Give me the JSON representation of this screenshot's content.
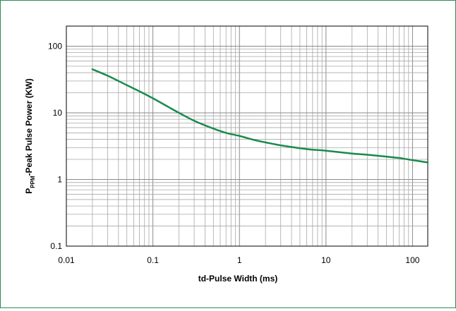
{
  "chart_data": {
    "type": "line",
    "title": "",
    "xlabel": "td-Pulse Width (ms)",
    "ylabel": {
      "prefix": "P",
      "subscript": "PPM",
      "suffix": "-Peak Pulse Power (KW)"
    },
    "x_scale": "log",
    "y_scale": "log",
    "xlim": [
      0.01,
      150
    ],
    "ylim": [
      0.1,
      200
    ],
    "x_ticks": [
      {
        "value": 0.01,
        "label": "0.01"
      },
      {
        "value": 0.1,
        "label": "0.1"
      },
      {
        "value": 1,
        "label": "1"
      },
      {
        "value": 10,
        "label": "10"
      },
      {
        "value": 100,
        "label": "100"
      }
    ],
    "y_ticks": [
      {
        "value": 0.1,
        "label": "0.1"
      },
      {
        "value": 1,
        "label": "1"
      },
      {
        "value": 10,
        "label": "10"
      },
      {
        "value": 100,
        "label": "100"
      }
    ],
    "grid": true,
    "legend": "none",
    "series": [
      {
        "color": "#1a8a4c",
        "x": [
          0.02,
          0.03,
          0.05,
          0.07,
          0.1,
          0.15,
          0.2,
          0.3,
          0.5,
          0.7,
          1,
          1.5,
          2,
          3,
          5,
          7,
          10,
          20,
          30,
          50,
          70,
          100,
          150
        ],
        "y": [
          45,
          36,
          26,
          21,
          16.5,
          12.3,
          10,
          7.6,
          5.8,
          5.0,
          4.5,
          3.9,
          3.6,
          3.25,
          2.95,
          2.8,
          2.7,
          2.45,
          2.35,
          2.2,
          2.1,
          1.95,
          1.8
        ]
      }
    ]
  }
}
